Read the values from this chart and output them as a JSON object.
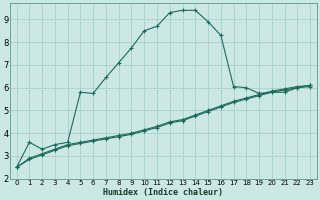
{
  "xlabel": "Humidex (Indice chaleur)",
  "bg_color": "#cce8e4",
  "grid_color": "#aacfcb",
  "line_color": "#1a6b5a",
  "xlim": [
    -0.5,
    23.5
  ],
  "ylim": [
    2.0,
    9.7
  ],
  "xticks": [
    0,
    1,
    2,
    3,
    4,
    5,
    6,
    7,
    8,
    9,
    10,
    11,
    12,
    13,
    14,
    15,
    16,
    17,
    18,
    19,
    20,
    21,
    22,
    23
  ],
  "yticks": [
    2,
    3,
    4,
    5,
    6,
    7,
    8,
    9
  ],
  "curve1_x": [
    0,
    1,
    2,
    3,
    4,
    5,
    6,
    7,
    8,
    9,
    10,
    11,
    12,
    13,
    14,
    15,
    16,
    17,
    18,
    19,
    20,
    21,
    22,
    23
  ],
  "curve1_y": [
    2.5,
    3.6,
    3.3,
    3.5,
    3.6,
    5.8,
    5.75,
    6.45,
    7.1,
    7.75,
    8.5,
    8.7,
    9.3,
    9.4,
    9.4,
    8.9,
    8.3,
    6.05,
    6.0,
    5.75,
    5.8,
    5.8,
    6.0,
    6.1
  ],
  "curve2_x": [
    0,
    1,
    2,
    3,
    4,
    5,
    6,
    7,
    8,
    9,
    10,
    11,
    12,
    13,
    14,
    15,
    16,
    17,
    18,
    19,
    20,
    21,
    22,
    23
  ],
  "curve2_y": [
    2.5,
    2.9,
    3.1,
    3.3,
    3.5,
    3.6,
    3.7,
    3.8,
    3.9,
    4.0,
    4.15,
    4.3,
    4.5,
    4.6,
    4.8,
    5.0,
    5.2,
    5.4,
    5.55,
    5.7,
    5.85,
    5.95,
    6.05,
    6.1
  ],
  "curve3_x": [
    0,
    1,
    2,
    3,
    4,
    5,
    6,
    7,
    8,
    9,
    10,
    11,
    12,
    13,
    14,
    15,
    16,
    17,
    18,
    19,
    20,
    21,
    22,
    23
  ],
  "curve3_y": [
    2.5,
    2.85,
    3.05,
    3.25,
    3.45,
    3.55,
    3.65,
    3.75,
    3.85,
    3.95,
    4.1,
    4.25,
    4.45,
    4.55,
    4.75,
    4.95,
    5.15,
    5.35,
    5.5,
    5.65,
    5.8,
    5.9,
    6.0,
    6.05
  ]
}
